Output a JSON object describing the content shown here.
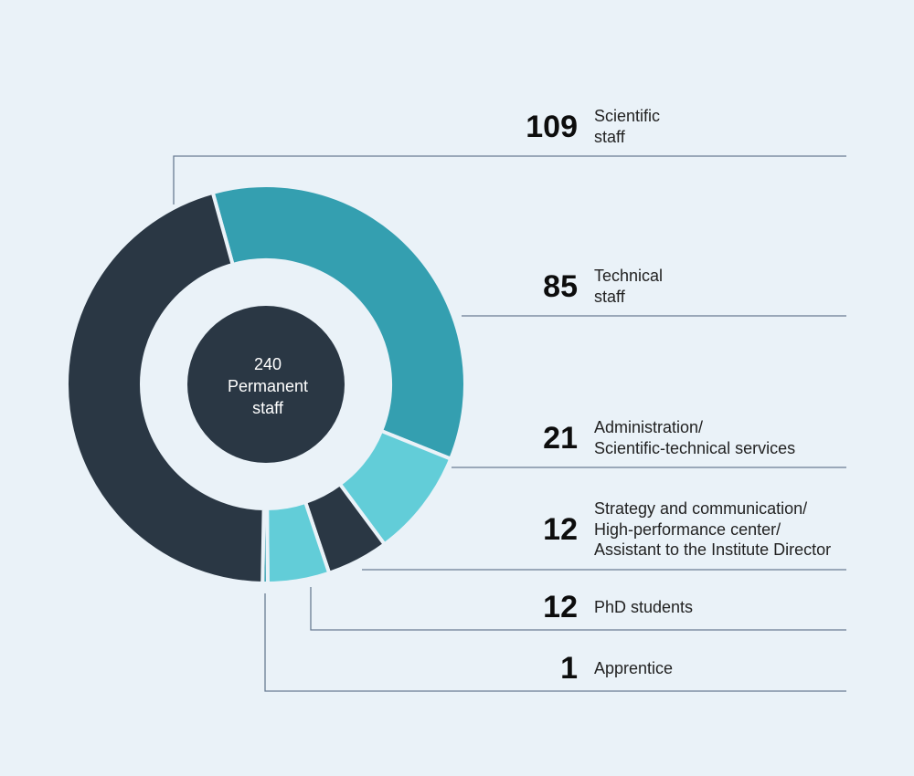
{
  "chart_data": {
    "type": "pie",
    "center_label": "240\nPermanent\nstaff",
    "slices": [
      {
        "value": 109,
        "label": "Scientific\nstaff",
        "color": "#2a3744"
      },
      {
        "value": 85,
        "label": "Technical\nstaff",
        "color": "#349fb0"
      },
      {
        "value": 21,
        "label": "Administration/\nScientific-technical services",
        "color": "#62cdd8"
      },
      {
        "value": 12,
        "label": "Strategy and communication/\nHigh-performance center/\nAssistant to the Institute Director",
        "color": "#2a3744"
      },
      {
        "value": 12,
        "label": "PhD students",
        "color": "#62cdd8"
      },
      {
        "value": 1,
        "label": "Apprentice",
        "color": "#349fb0"
      }
    ]
  },
  "colors": {
    "background": "#eaf2f8",
    "leader_line": "#6a7c93",
    "dark": "#2a3744",
    "teal": "#349fb0",
    "light_teal": "#62cdd8"
  }
}
